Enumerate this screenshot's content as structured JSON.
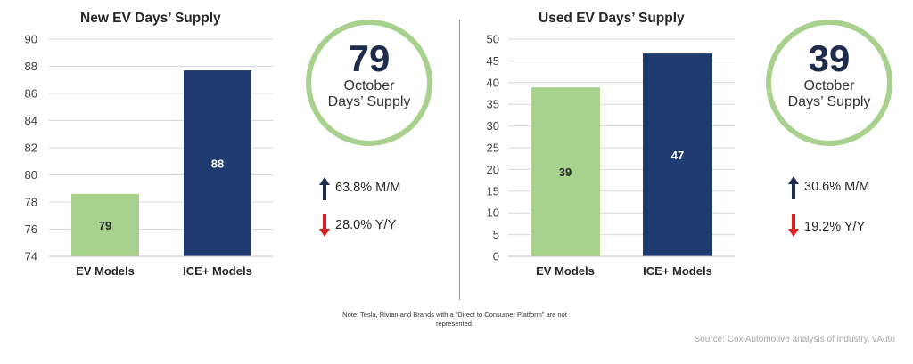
{
  "left": {
    "kpi": {
      "value": "79",
      "line1": "October",
      "line2": "Days’ Supply"
    },
    "stats": {
      "mm": "63.8% M/M",
      "yy": "28.0% Y/Y"
    }
  },
  "right": {
    "kpi": {
      "value": "39",
      "line1": "October",
      "line2": "Days’ Supply"
    },
    "stats": {
      "mm": "30.6% M/M",
      "yy": "19.2% Y/Y"
    }
  },
  "note": "Note: Tesla, Rivian and Brands with a “Direct to Consumer Platform” are not represented.",
  "source": "Source: Cox Automotive analysis of industry, vAuto",
  "colors": {
    "ev": "#a9d18e",
    "ice": "#1f3a6e",
    "up": "#1f2d4d",
    "down": "#e02020",
    "ring": "#a9d18e"
  },
  "chart_data": [
    {
      "type": "bar",
      "title": "New EV Days’ Supply",
      "categories": [
        "EV Models",
        "ICE+ Models"
      ],
      "values": [
        78.6,
        87.7
      ],
      "data_labels": [
        "79",
        "88"
      ],
      "ylim": [
        74,
        90
      ],
      "yticks": [
        74,
        76,
        78,
        80,
        82,
        84,
        86,
        88,
        90
      ],
      "grid": true,
      "xlabel": "",
      "ylabel": ""
    },
    {
      "type": "bar",
      "title": "Used EV Days’ Supply",
      "categories": [
        "EV Models",
        "ICE+ Models"
      ],
      "values": [
        38.9,
        46.7
      ],
      "data_labels": [
        "39",
        "47"
      ],
      "ylim": [
        0,
        50
      ],
      "yticks": [
        0,
        5,
        10,
        15,
        20,
        25,
        30,
        35,
        40,
        45,
        50
      ],
      "grid": true,
      "xlabel": "",
      "ylabel": ""
    }
  ]
}
